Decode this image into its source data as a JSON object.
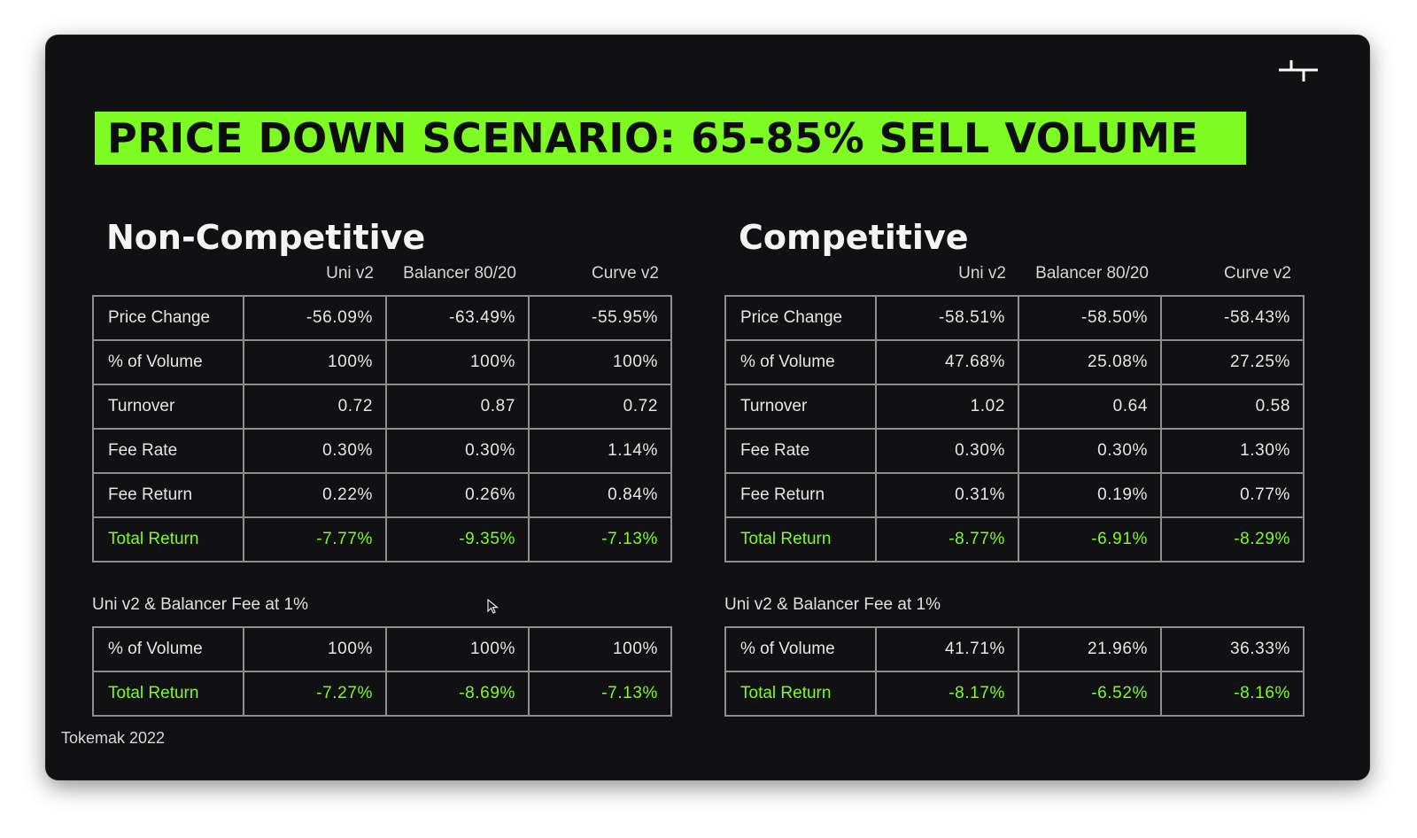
{
  "slide": {
    "title": "PRICE DOWN SCENARIO: 65-85% SELL VOLUME",
    "footer": "Tokemak 2022",
    "logo_icon": "tokemak-logo-icon",
    "accent_color": "#7dfb22",
    "background_color": "#111113"
  },
  "columns": [
    "Uni v2",
    "Balancer 80/20",
    "Curve v2"
  ],
  "non_competitive": {
    "title": "Non-Competitive",
    "main_rows": [
      {
        "label": "Price Change",
        "values": [
          "-56.09%",
          "-63.49%",
          "-55.95%"
        ]
      },
      {
        "label": "% of Volume",
        "values": [
          "100%",
          "100%",
          "100%"
        ]
      },
      {
        "label": "Turnover",
        "values": [
          "0.72",
          "0.87",
          "0.72"
        ]
      },
      {
        "label": "Fee Rate",
        "values": [
          "0.30%",
          "0.30%",
          "1.14%"
        ]
      },
      {
        "label": "Fee Return",
        "values": [
          "0.22%",
          "0.26%",
          "0.84%"
        ]
      },
      {
        "label": "Total Return",
        "values": [
          "-7.77%",
          "-9.35%",
          "-7.13%"
        ]
      }
    ],
    "note": "Uni v2 & Balancer Fee at 1%",
    "fee_rows": [
      {
        "label": "% of Volume",
        "values": [
          "100%",
          "100%",
          "100%"
        ]
      },
      {
        "label": "Total Return",
        "values": [
          "-7.27%",
          "-8.69%",
          "-7.13%"
        ]
      }
    ]
  },
  "competitive": {
    "title": "Competitive",
    "main_rows": [
      {
        "label": "Price Change",
        "values": [
          "-58.51%",
          "-58.50%",
          "-58.43%"
        ]
      },
      {
        "label": "% of Volume",
        "values": [
          "47.68%",
          "25.08%",
          "27.25%"
        ]
      },
      {
        "label": "Turnover",
        "values": [
          "1.02",
          "0.64",
          "0.58"
        ]
      },
      {
        "label": "Fee Rate",
        "values": [
          "0.30%",
          "0.30%",
          "1.30%"
        ]
      },
      {
        "label": "Fee Return",
        "values": [
          "0.31%",
          "0.19%",
          "0.77%"
        ]
      },
      {
        "label": "Total Return",
        "values": [
          "-8.77%",
          "-6.91%",
          "-8.29%"
        ]
      }
    ],
    "note": "Uni v2 & Balancer Fee at 1%",
    "fee_rows": [
      {
        "label": "% of Volume",
        "values": [
          "41.71%",
          "21.96%",
          "36.33%"
        ]
      },
      {
        "label": "Total Return",
        "values": [
          "-8.17%",
          "-6.52%",
          "-8.16%"
        ]
      }
    ]
  }
}
